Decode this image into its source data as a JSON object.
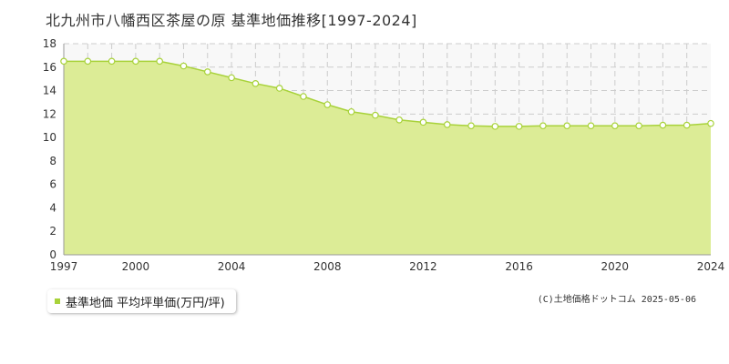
{
  "chart_data": {
    "type": "area",
    "title": "北九州市八幡西区茶屋の原 基準地価推移[1997-2024]",
    "xlabel": "",
    "ylabel": "",
    "xlim": [
      1997,
      2024
    ],
    "ylim": [
      0,
      18
    ],
    "y_ticks": [
      0,
      2,
      4,
      6,
      8,
      10,
      12,
      14,
      16,
      18
    ],
    "x_ticks": [
      1997,
      2000,
      2004,
      2008,
      2012,
      2016,
      2020,
      2024
    ],
    "grid": true,
    "legend_position": "bottom-left",
    "series": [
      {
        "name": "基準地価 平均坪単価(万円/坪)",
        "color": "#a8d23a",
        "fill": "#dcec96",
        "x": [
          1997,
          1998,
          1999,
          2000,
          2001,
          2002,
          2003,
          2004,
          2005,
          2006,
          2007,
          2008,
          2009,
          2010,
          2011,
          2012,
          2013,
          2014,
          2015,
          2016,
          2017,
          2018,
          2019,
          2020,
          2021,
          2022,
          2023,
          2024
        ],
        "values": [
          16.5,
          16.5,
          16.5,
          16.5,
          16.5,
          16.1,
          15.6,
          15.1,
          14.6,
          14.2,
          13.5,
          12.8,
          12.2,
          11.9,
          11.5,
          11.3,
          11.1,
          11.0,
          10.95,
          10.95,
          11.0,
          11.0,
          11.0,
          11.0,
          11.0,
          11.05,
          11.05,
          11.2
        ]
      }
    ]
  },
  "legend": {
    "label": "基準地価 平均坪単価(万円/坪)"
  },
  "copyright": "(C)土地価格ドットコム 2025-05-06"
}
